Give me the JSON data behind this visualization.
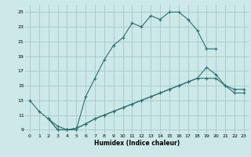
{
  "xlabel": "Humidex (Indice chaleur)",
  "bg_color": "#cce8e8",
  "grid_color": "#aacccc",
  "line_color": "#2e6e6e",
  "xlim": [
    -0.5,
    23.5
  ],
  "ylim": [
    8.5,
    26
  ],
  "xticks": [
    0,
    1,
    2,
    3,
    4,
    5,
    6,
    7,
    8,
    9,
    10,
    11,
    12,
    13,
    14,
    15,
    16,
    17,
    18,
    19,
    20,
    21,
    22,
    23
  ],
  "yticks": [
    9,
    11,
    13,
    15,
    17,
    19,
    21,
    23,
    25
  ],
  "line1_x": [
    0,
    1,
    2,
    3,
    4,
    5,
    6,
    7,
    8,
    9,
    10,
    11,
    12,
    13,
    14,
    15,
    16,
    17,
    18,
    19,
    20
  ],
  "line1_y": [
    13,
    11.5,
    10.5,
    9.5,
    9,
    9,
    13.5,
    16,
    18.5,
    20.5,
    21.5,
    23.5,
    23,
    24.5,
    24,
    25,
    25,
    24,
    22.5,
    20,
    20
  ],
  "line2_x": [
    2,
    3,
    4,
    5,
    6,
    7,
    8,
    9,
    10,
    11,
    12,
    13,
    14,
    15,
    16,
    17,
    18,
    19,
    20,
    21,
    22,
    23
  ],
  "line2_y": [
    10.5,
    9.0,
    9.0,
    9.2,
    9.8,
    10.5,
    11.0,
    11.5,
    12.0,
    12.5,
    13.0,
    13.5,
    14.0,
    14.5,
    15.0,
    15.5,
    16.0,
    17.5,
    16.5,
    15.0,
    14.5,
    14.5
  ],
  "line3_x": [
    2,
    3,
    4,
    5,
    6,
    7,
    8,
    9,
    10,
    11,
    12,
    13,
    14,
    15,
    16,
    17,
    18,
    19,
    20,
    21,
    22,
    23
  ],
  "line3_y": [
    10.5,
    9.0,
    9.0,
    9.2,
    9.8,
    10.5,
    11.0,
    11.5,
    12.0,
    12.5,
    13.0,
    13.5,
    14.0,
    14.5,
    15.0,
    15.5,
    16.0,
    16.0,
    16.0,
    15.0,
    14.0,
    14.0
  ]
}
